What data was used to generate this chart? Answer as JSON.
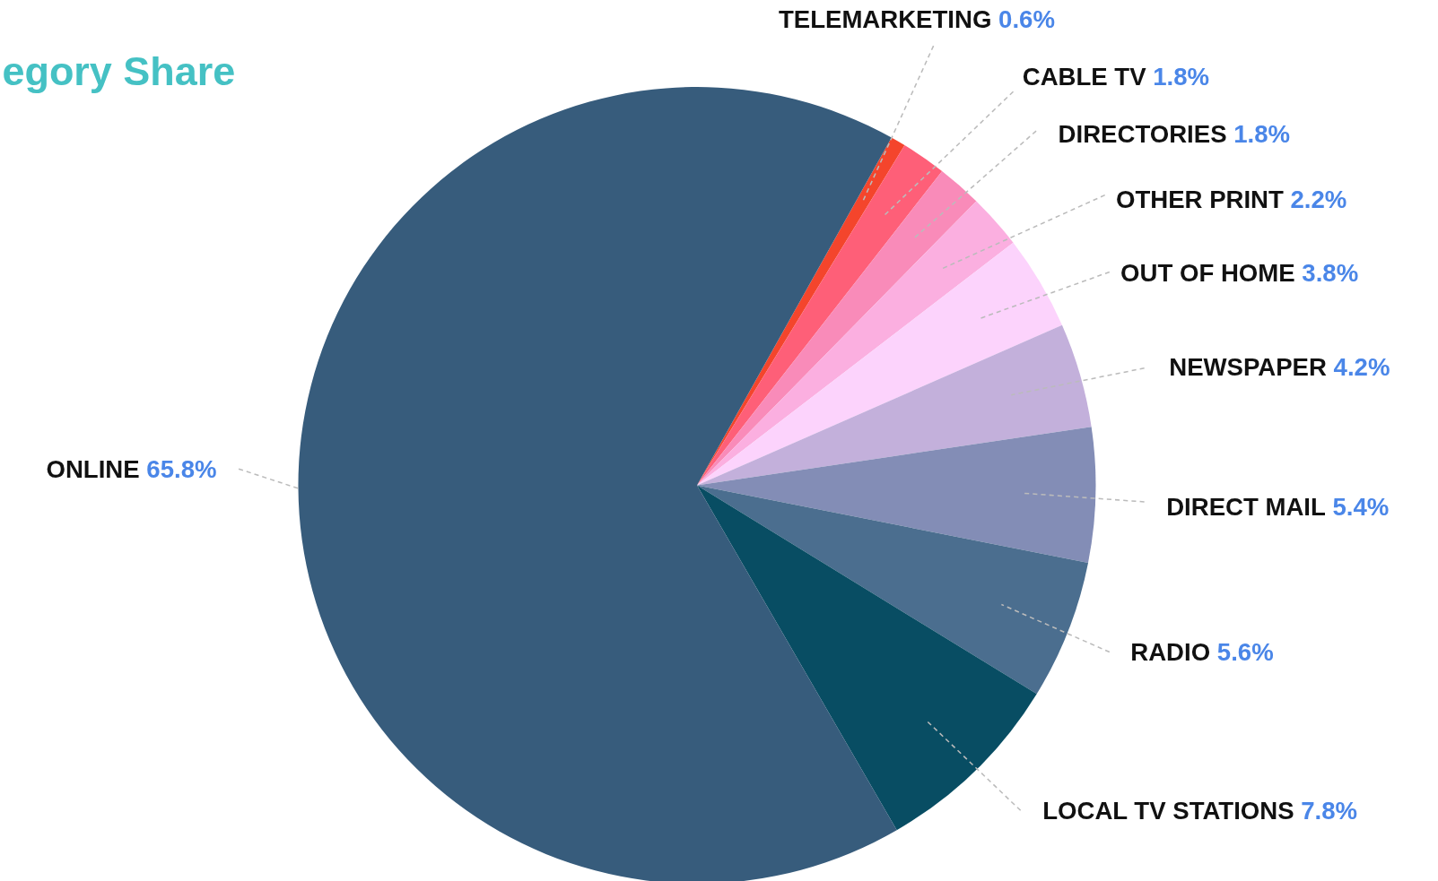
{
  "chart_data": {
    "type": "pie",
    "title": "egory Share",
    "categories": [
      "TELEMARKETING",
      "CABLE TV",
      "DIRECTORIES",
      "OTHER PRINT",
      "OUT OF HOME",
      "NEWSPAPER",
      "DIRECT MAIL",
      "RADIO",
      "LOCAL TV STATIONS",
      "ONLINE"
    ],
    "values": [
      0.6,
      1.8,
      1.8,
      2.2,
      3.8,
      4.2,
      5.4,
      5.6,
      7.8,
      65.8
    ],
    "colors": [
      "#f4452c",
      "#fe5f78",
      "#f98bb9",
      "#fbafe0",
      "#fcd3fc",
      "#c3b0db",
      "#838db6",
      "#4b6e8f",
      "#084d63",
      "#375c7c"
    ],
    "value_labels": [
      "0.6%",
      "1.8%",
      "1.8%",
      "2.2%",
      "3.8%",
      "4.2%",
      "5.4%",
      "5.6%",
      "7.8%",
      "65.8%"
    ]
  }
}
